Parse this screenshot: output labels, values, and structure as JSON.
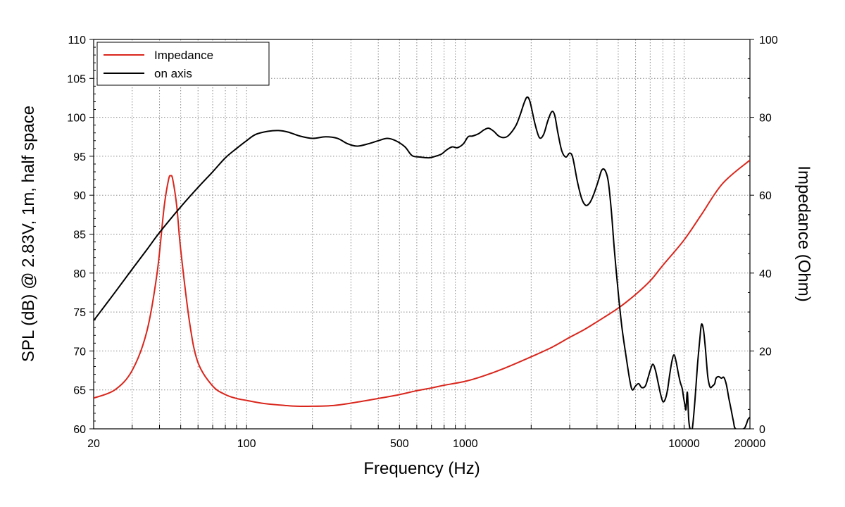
{
  "chart_data": {
    "type": "line",
    "title": "",
    "xlabel": "Frequency (Hz)",
    "ylabel": "SPL (dB) @ 2.83V, 1m, half space",
    "y2label": "Impedance (Ohm)",
    "xscale": "log",
    "xlim": [
      20,
      20000
    ],
    "ylim": [
      60,
      110
    ],
    "y2lim": [
      0,
      100
    ],
    "grid": true,
    "legend_position": "top-left",
    "x_ticks": [
      {
        "value": 20,
        "label": "20"
      },
      {
        "value": 100,
        "label": "100"
      },
      {
        "value": 500,
        "label": "500"
      },
      {
        "value": 1000,
        "label": "1000"
      },
      {
        "value": 10000,
        "label": "10000"
      },
      {
        "value": 20000,
        "label": "20000"
      }
    ],
    "y_ticks": [
      {
        "value": 60,
        "label": "60"
      },
      {
        "value": 65,
        "label": "65"
      },
      {
        "value": 70,
        "label": "70"
      },
      {
        "value": 75,
        "label": "75"
      },
      {
        "value": 80,
        "label": "80"
      },
      {
        "value": 85,
        "label": "85"
      },
      {
        "value": 90,
        "label": "90"
      },
      {
        "value": 95,
        "label": "95"
      },
      {
        "value": 100,
        "label": "100"
      },
      {
        "value": 105,
        "label": "105"
      },
      {
        "value": 110,
        "label": "110"
      }
    ],
    "y2_ticks": [
      {
        "value": 0,
        "label": "0"
      },
      {
        "value": 20,
        "label": "20"
      },
      {
        "value": 40,
        "label": "40"
      },
      {
        "value": 60,
        "label": "60"
      },
      {
        "value": 80,
        "label": "80"
      },
      {
        "value": 100,
        "label": "100"
      }
    ],
    "series": [
      {
        "name": "Impedance",
        "color": "#d9261c",
        "axis": "right",
        "points": [
          [
            20,
            7.9
          ],
          [
            25,
            10
          ],
          [
            30,
            15
          ],
          [
            35,
            25
          ],
          [
            39,
            40
          ],
          [
            42,
            57
          ],
          [
            44,
            64
          ],
          [
            45,
            65
          ],
          [
            46,
            64
          ],
          [
            48,
            57
          ],
          [
            50,
            46
          ],
          [
            55,
            27
          ],
          [
            60,
            17
          ],
          [
            70,
            11
          ],
          [
            80,
            8.8
          ],
          [
            90,
            7.8
          ],
          [
            100,
            7.3
          ],
          [
            120,
            6.5
          ],
          [
            150,
            6.0
          ],
          [
            170,
            5.8
          ],
          [
            200,
            5.8
          ],
          [
            250,
            6.0
          ],
          [
            300,
            6.6
          ],
          [
            400,
            7.8
          ],
          [
            500,
            8.8
          ],
          [
            600,
            9.8
          ],
          [
            700,
            10.5
          ],
          [
            800,
            11.2
          ],
          [
            1000,
            12.2
          ],
          [
            1200,
            13.5
          ],
          [
            1500,
            15.5
          ],
          [
            2000,
            18.5
          ],
          [
            2500,
            21.0
          ],
          [
            3000,
            23.5
          ],
          [
            3500,
            25.5
          ],
          [
            4000,
            27.5
          ],
          [
            5000,
            31.0
          ],
          [
            6000,
            34.5
          ],
          [
            7000,
            38.0
          ],
          [
            8000,
            42.0
          ],
          [
            10000,
            48.5
          ],
          [
            12000,
            55.0
          ],
          [
            15000,
            63.0
          ],
          [
            20000,
            69.0
          ]
        ]
      },
      {
        "name": "on axis",
        "color": "#000000",
        "axis": "left",
        "points": [
          [
            20,
            73.9
          ],
          [
            25,
            77.5
          ],
          [
            30,
            80.5
          ],
          [
            35,
            83.0
          ],
          [
            40,
            85.2
          ],
          [
            50,
            88.5
          ],
          [
            60,
            91.0
          ],
          [
            70,
            93.0
          ],
          [
            80,
            94.8
          ],
          [
            90,
            96.0
          ],
          [
            100,
            97.0
          ],
          [
            110,
            97.8
          ],
          [
            125,
            98.2
          ],
          [
            140,
            98.3
          ],
          [
            155,
            98.1
          ],
          [
            175,
            97.6
          ],
          [
            200,
            97.3
          ],
          [
            230,
            97.5
          ],
          [
            260,
            97.3
          ],
          [
            290,
            96.6
          ],
          [
            320,
            96.3
          ],
          [
            360,
            96.6
          ],
          [
            400,
            97.0
          ],
          [
            440,
            97.3
          ],
          [
            480,
            97.0
          ],
          [
            530,
            96.2
          ],
          [
            570,
            95.1
          ],
          [
            620,
            94.9
          ],
          [
            680,
            94.8
          ],
          [
            730,
            95.0
          ],
          [
            780,
            95.3
          ],
          [
            820,
            95.8
          ],
          [
            870,
            96.2
          ],
          [
            920,
            96.1
          ],
          [
            980,
            96.6
          ],
          [
            1030,
            97.5
          ],
          [
            1080,
            97.6
          ],
          [
            1150,
            97.9
          ],
          [
            1220,
            98.4
          ],
          [
            1280,
            98.6
          ],
          [
            1350,
            98.2
          ],
          [
            1420,
            97.6
          ],
          [
            1500,
            97.4
          ],
          [
            1580,
            97.7
          ],
          [
            1700,
            98.9
          ],
          [
            1780,
            100.3
          ],
          [
            1860,
            101.9
          ],
          [
            1920,
            102.6
          ],
          [
            1980,
            101.9
          ],
          [
            2080,
            99.2
          ],
          [
            2180,
            97.4
          ],
          [
            2280,
            97.8
          ],
          [
            2380,
            99.5
          ],
          [
            2480,
            100.7
          ],
          [
            2560,
            100.3
          ],
          [
            2650,
            98.0
          ],
          [
            2760,
            95.7
          ],
          [
            2880,
            94.9
          ],
          [
            3000,
            95.4
          ],
          [
            3100,
            94.8
          ],
          [
            3250,
            91.8
          ],
          [
            3400,
            89.6
          ],
          [
            3550,
            88.7
          ],
          [
            3700,
            89.0
          ],
          [
            3850,
            90.0
          ],
          [
            4050,
            91.8
          ],
          [
            4200,
            93.2
          ],
          [
            4350,
            93.2
          ],
          [
            4500,
            91.8
          ],
          [
            4650,
            88.0
          ],
          [
            4800,
            83.0
          ],
          [
            5000,
            77.5
          ],
          [
            5200,
            73.0
          ],
          [
            5450,
            69.0
          ],
          [
            5650,
            66.2
          ],
          [
            5800,
            65.0
          ],
          [
            6000,
            65.5
          ],
          [
            6200,
            65.8
          ],
          [
            6400,
            65.3
          ],
          [
            6650,
            65.5
          ],
          [
            6850,
            66.6
          ],
          [
            7000,
            67.5
          ],
          [
            7200,
            68.3
          ],
          [
            7400,
            67.5
          ],
          [
            7600,
            66.0
          ],
          [
            7800,
            64.5
          ],
          [
            8000,
            63.5
          ],
          [
            8200,
            63.8
          ],
          [
            8400,
            65.0
          ],
          [
            8600,
            67.0
          ],
          [
            8800,
            68.7
          ],
          [
            9000,
            69.5
          ],
          [
            9200,
            68.6
          ],
          [
            9400,
            67.2
          ],
          [
            9600,
            66.0
          ],
          [
            9800,
            65.2
          ],
          [
            9950,
            64.0
          ],
          [
            10100,
            63.0
          ],
          [
            10200,
            62.5
          ],
          [
            10350,
            64.7
          ],
          [
            10500,
            61.2
          ],
          [
            10650,
            60.0
          ],
          [
            10900,
            60.0
          ],
          [
            11200,
            63.5
          ],
          [
            11500,
            68.0
          ],
          [
            11800,
            71.5
          ],
          [
            12000,
            73.4
          ],
          [
            12250,
            72.8
          ],
          [
            12500,
            70.5
          ],
          [
            12800,
            67.0
          ],
          [
            13000,
            65.8
          ],
          [
            13200,
            65.3
          ],
          [
            13500,
            65.5
          ],
          [
            13800,
            65.8
          ],
          [
            14000,
            66.5
          ],
          [
            14400,
            66.7
          ],
          [
            14800,
            66.5
          ],
          [
            15200,
            66.6
          ],
          [
            15600,
            65.7
          ],
          [
            16000,
            64.0
          ],
          [
            16400,
            62.5
          ],
          [
            16800,
            61.0
          ],
          [
            17200,
            60.0
          ],
          [
            18700,
            60.0
          ],
          [
            19200,
            60.5
          ],
          [
            19600,
            61.2
          ],
          [
            20000,
            61.5
          ]
        ]
      }
    ]
  }
}
